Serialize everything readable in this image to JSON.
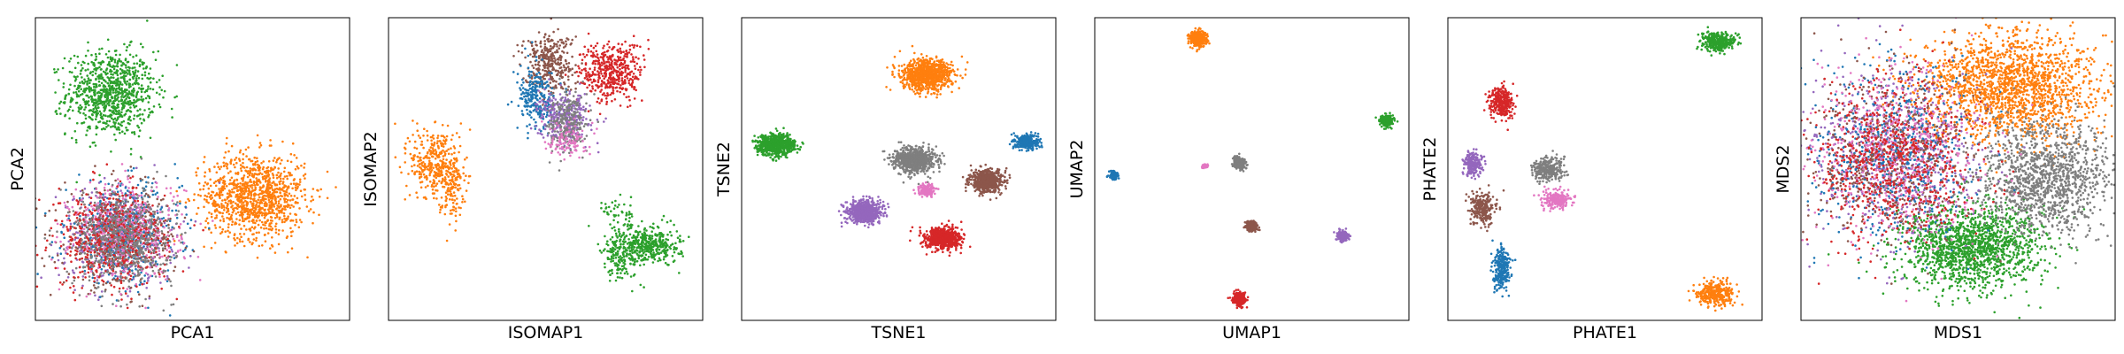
{
  "chart_data": [
    {
      "type": "scatter",
      "xlabel": "PCA1",
      "ylabel": "PCA2",
      "grid": false,
      "xlim": [
        0,
        100
      ],
      "ylim": [
        0,
        100
      ],
      "clusters": [
        {
          "color": "#2ca02c",
          "cx": 24,
          "cy": 75,
          "sx": 7,
          "sy": 7,
          "n": 900
        },
        {
          "color": "#ff7f0e",
          "cx": 70,
          "cy": 41,
          "sx": 8,
          "sy": 7,
          "n": 1100
        },
        {
          "color": "#9467bd",
          "cx": 26,
          "cy": 28,
          "sx": 9,
          "sy": 8,
          "n": 450
        },
        {
          "color": "#1f77b4",
          "cx": 28,
          "cy": 29,
          "sx": 9,
          "sy": 8,
          "n": 450
        },
        {
          "color": "#8c564b",
          "cx": 27,
          "cy": 27,
          "sx": 9,
          "sy": 8,
          "n": 450
        },
        {
          "color": "#e377c2",
          "cx": 29,
          "cy": 30,
          "sx": 9,
          "sy": 8,
          "n": 450
        },
        {
          "color": "#d62728",
          "cx": 24,
          "cy": 27,
          "sx": 9,
          "sy": 8,
          "n": 500
        },
        {
          "color": "#7f7f7f",
          "cx": 28,
          "cy": 27,
          "sx": 8,
          "sy": 8,
          "n": 500
        }
      ]
    },
    {
      "type": "scatter",
      "xlabel": "ISOMAP1",
      "ylabel": "ISOMAP2",
      "grid": false,
      "xlim": [
        0,
        100
      ],
      "ylim": [
        0,
        100
      ],
      "clusters": [
        {
          "color": "#ff7f0e",
          "cx": 15,
          "cy": 52,
          "sx": 4,
          "sy": 6,
          "n": 350
        },
        {
          "color": "#ff7f0e",
          "cx": 20,
          "cy": 44,
          "sx": 2,
          "sy": 5,
          "n": 120
        },
        {
          "color": "#8c564b",
          "cx": 51,
          "cy": 85,
          "sx": 4,
          "sy": 5,
          "n": 350
        },
        {
          "color": "#d62728",
          "cx": 71,
          "cy": 82,
          "sx": 5,
          "sy": 5,
          "n": 450
        },
        {
          "color": "#1f77b4",
          "cx": 47,
          "cy": 73,
          "sx": 3,
          "sy": 5,
          "n": 250
        },
        {
          "color": "#9467bd",
          "cx": 56,
          "cy": 67,
          "sx": 4,
          "sy": 4,
          "n": 300
        },
        {
          "color": "#7f7f7f",
          "cx": 57,
          "cy": 65,
          "sx": 3,
          "sy": 5,
          "n": 250
        },
        {
          "color": "#e377c2",
          "cx": 57,
          "cy": 60,
          "sx": 3,
          "sy": 3,
          "n": 100
        },
        {
          "color": "#2ca02c",
          "cx": 83,
          "cy": 25,
          "sx": 5,
          "sy": 3,
          "n": 400
        },
        {
          "color": "#2ca02c",
          "cx": 74,
          "cy": 21,
          "sx": 3,
          "sy": 4,
          "n": 150
        },
        {
          "color": "#2ca02c",
          "cx": 73,
          "cy": 36,
          "sx": 3,
          "sy": 3,
          "n": 50
        }
      ]
    },
    {
      "type": "scatter",
      "xlabel": "TSNE1",
      "ylabel": "TSNE2",
      "grid": false,
      "xlim": [
        0,
        100
      ],
      "ylim": [
        0,
        100
      ],
      "clusters": [
        {
          "color": "#ff7f0e",
          "cx": 59,
          "cy": 81,
          "sx": 4,
          "sy": 2.5,
          "n": 900
        },
        {
          "color": "#2ca02c",
          "cx": 11,
          "cy": 58,
          "sx": 3,
          "sy": 1.7,
          "n": 700
        },
        {
          "color": "#1f77b4",
          "cx": 91,
          "cy": 59,
          "sx": 1.8,
          "sy": 1.2,
          "n": 300
        },
        {
          "color": "#7f7f7f",
          "cx": 55,
          "cy": 53,
          "sx": 3.2,
          "sy": 2,
          "n": 800
        },
        {
          "color": "#8c564b",
          "cx": 78,
          "cy": 46,
          "sx": 2.6,
          "sy": 1.8,
          "n": 600
        },
        {
          "color": "#e377c2",
          "cx": 59,
          "cy": 43,
          "sx": 1.2,
          "sy": 1,
          "n": 150
        },
        {
          "color": "#9467bd",
          "cx": 39,
          "cy": 36,
          "sx": 2.8,
          "sy": 1.8,
          "n": 650
        },
        {
          "color": "#d62728",
          "cx": 64,
          "cy": 27,
          "sx": 2.8,
          "sy": 1.8,
          "n": 700
        }
      ]
    },
    {
      "type": "scatter",
      "xlabel": "UMAP1",
      "ylabel": "UMAP2",
      "grid": false,
      "xlim": [
        0,
        100
      ],
      "ylim": [
        0,
        100
      ],
      "clusters": [
        {
          "color": "#ff7f0e",
          "cx": 33,
          "cy": 93,
          "sx": 1.3,
          "sy": 1.2,
          "n": 400
        },
        {
          "color": "#2ca02c",
          "cx": 93,
          "cy": 66,
          "sx": 1,
          "sy": 1,
          "n": 250
        },
        {
          "color": "#1f77b4",
          "cx": 6,
          "cy": 48,
          "sx": 0.7,
          "sy": 0.7,
          "n": 100
        },
        {
          "color": "#e377c2",
          "cx": 35,
          "cy": 51,
          "sx": 0.6,
          "sy": 0.4,
          "n": 50
        },
        {
          "color": "#7f7f7f",
          "cx": 46,
          "cy": 52,
          "sx": 1,
          "sy": 0.9,
          "n": 250
        },
        {
          "color": "#8c564b",
          "cx": 50,
          "cy": 31,
          "sx": 0.9,
          "sy": 0.8,
          "n": 200
        },
        {
          "color": "#9467bd",
          "cx": 79,
          "cy": 28,
          "sx": 1,
          "sy": 0.8,
          "n": 200
        },
        {
          "color": "#d62728",
          "cx": 46,
          "cy": 7,
          "sx": 1,
          "sy": 1,
          "n": 250
        }
      ]
    },
    {
      "type": "scatter",
      "xlabel": "PHATE1",
      "ylabel": "PHATE2",
      "grid": false,
      "xlim": [
        0,
        100
      ],
      "ylim": [
        0,
        100
      ],
      "clusters": [
        {
          "color": "#2ca02c",
          "cx": 86,
          "cy": 92,
          "sx": 2.5,
          "sy": 1.5,
          "n": 350
        },
        {
          "color": "#d62728",
          "cx": 17,
          "cy": 72,
          "sx": 2,
          "sy": 2.5,
          "n": 300
        },
        {
          "color": "#9467bd",
          "cx": 8,
          "cy": 52,
          "sx": 1.5,
          "sy": 2,
          "n": 200
        },
        {
          "color": "#7f7f7f",
          "cx": 32,
          "cy": 50,
          "sx": 2.5,
          "sy": 2,
          "n": 300
        },
        {
          "color": "#e377c2",
          "cx": 35,
          "cy": 40,
          "sx": 2.5,
          "sy": 1.5,
          "n": 200
        },
        {
          "color": "#8c564b",
          "cx": 11,
          "cy": 37,
          "sx": 2,
          "sy": 2.5,
          "n": 250
        },
        {
          "color": "#1f77b4",
          "cx": 17,
          "cy": 17,
          "sx": 1.3,
          "sy": 3.5,
          "n": 250
        },
        {
          "color": "#ff7f0e",
          "cx": 85,
          "cy": 9,
          "sx": 3,
          "sy": 2,
          "n": 350
        }
      ]
    },
    {
      "type": "scatter",
      "xlabel": "MDS1",
      "ylabel": "MDS2",
      "grid": false,
      "xlim": [
        0,
        100
      ],
      "ylim": [
        0,
        100
      ],
      "clusters": [
        {
          "color": "#ff7f0e",
          "cx": 66,
          "cy": 77,
          "sx": 14,
          "sy": 9,
          "n": 1800
        },
        {
          "color": "#2ca02c",
          "cx": 54,
          "cy": 24,
          "sx": 11,
          "sy": 7,
          "n": 1500
        },
        {
          "color": "#7f7f7f",
          "cx": 78,
          "cy": 47,
          "sx": 11,
          "sy": 9,
          "n": 1300
        },
        {
          "color": "#9467bd",
          "cx": 30,
          "cy": 55,
          "sx": 13,
          "sy": 14,
          "n": 600
        },
        {
          "color": "#1f77b4",
          "cx": 30,
          "cy": 56,
          "sx": 13,
          "sy": 14,
          "n": 600
        },
        {
          "color": "#8c564b",
          "cx": 28,
          "cy": 54,
          "sx": 13,
          "sy": 14,
          "n": 600
        },
        {
          "color": "#e377c2",
          "cx": 31,
          "cy": 55,
          "sx": 13,
          "sy": 14,
          "n": 600
        },
        {
          "color": "#d62728",
          "cx": 29,
          "cy": 53,
          "sx": 13,
          "sy": 14,
          "n": 700
        }
      ]
    }
  ]
}
